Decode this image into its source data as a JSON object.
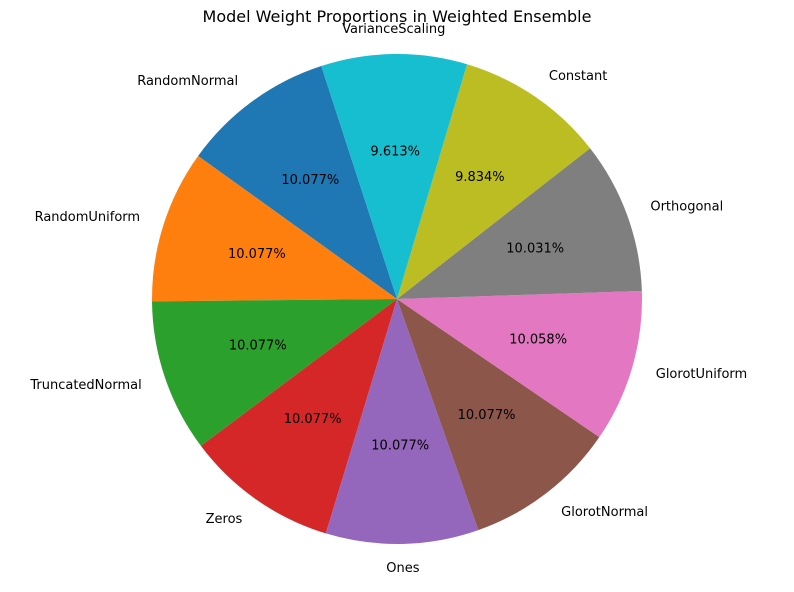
{
  "chart_data": {
    "type": "pie",
    "title": "Model Weight Proportions in Weighted Ensemble",
    "start_angle_deg": 108,
    "direction": "counterclockwise",
    "labels": [
      "RandomNormal",
      "RandomUniform",
      "TruncatedNormal",
      "Zeros",
      "Ones",
      "GlorotNormal",
      "GlorotUniform",
      "Orthogonal",
      "Constant",
      "VarianceScaling"
    ],
    "values": [
      10.077,
      10.077,
      10.077,
      10.077,
      10.077,
      10.077,
      10.058,
      10.031,
      9.834,
      9.613
    ],
    "percent_labels": [
      "10.077%",
      "10.077%",
      "10.077%",
      "10.077%",
      "10.077%",
      "10.077%",
      "10.058%",
      "10.031%",
      "9.834%",
      "9.613%"
    ],
    "colors": [
      "#1f77b4",
      "#ff7f0e",
      "#2ca02c",
      "#d62728",
      "#9467bd",
      "#8c564b",
      "#e377c2",
      "#7f7f7f",
      "#bcbd22",
      "#17becf"
    ]
  }
}
